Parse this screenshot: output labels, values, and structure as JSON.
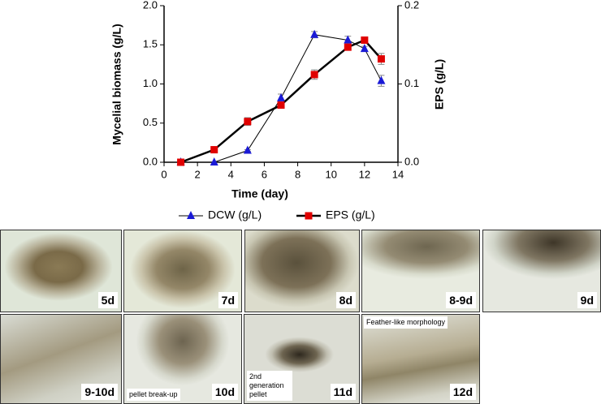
{
  "chart_data": {
    "type": "line",
    "xlabel": "Time (day)",
    "ylabel": "Mycelial biomass (g/L)",
    "y2label": "EPS (g/L)",
    "xlim": [
      0,
      14
    ],
    "xticks": [
      0,
      2,
      4,
      6,
      8,
      10,
      12,
      14
    ],
    "ylim": [
      0,
      2
    ],
    "yticks": [
      {
        "value": 0,
        "label": "0.0"
      },
      {
        "value": 0.5,
        "label": "0.5"
      },
      {
        "value": 1,
        "label": "1.0"
      },
      {
        "value": 1.5,
        "label": "1.5"
      },
      {
        "value": 2,
        "label": "2.0"
      }
    ],
    "y2lim": [
      0,
      0.2
    ],
    "y2ticks": [
      {
        "value": 0,
        "label": "0.0"
      },
      {
        "value": 0.1,
        "label": "0.1"
      },
      {
        "value": 0.2,
        "label": "0.2"
      }
    ],
    "series": [
      {
        "name": "DCW (g/L)",
        "color": "#1a1ad6",
        "marker": "triangle",
        "axis": "y",
        "x": [
          1,
          3,
          5,
          7,
          9,
          11,
          12,
          13
        ],
        "values": [
          0,
          0,
          0.15,
          0.82,
          1.63,
          1.56,
          1.45,
          1.04
        ],
        "errors": [
          0,
          0,
          0.01,
          0.05,
          0.04,
          0.05,
          0.03,
          0.07
        ]
      },
      {
        "name": "EPS (g/L)",
        "color": "#e00000",
        "marker": "square",
        "axis": "y2",
        "x": [
          1,
          3,
          5,
          7,
          9,
          11,
          12,
          13
        ],
        "values": [
          0,
          0.016,
          0.052,
          0.073,
          0.112,
          0.147,
          0.156,
          0.132
        ],
        "errors": [
          0,
          0.002,
          0.005,
          0.003,
          0.006,
          0.003,
          0.003,
          0.007
        ]
      }
    ]
  },
  "panels": [
    {
      "label": "5d"
    },
    {
      "label": "7d"
    },
    {
      "label": "8d"
    },
    {
      "label": "8-9d"
    },
    {
      "label": "9d"
    },
    {
      "label": "9-10d"
    },
    {
      "label": "10d",
      "caption": "pellet break-up"
    },
    {
      "label": "11d",
      "caption": "2nd generation pellet"
    },
    {
      "label": "12d",
      "caption": "Feather-like morphology"
    }
  ]
}
